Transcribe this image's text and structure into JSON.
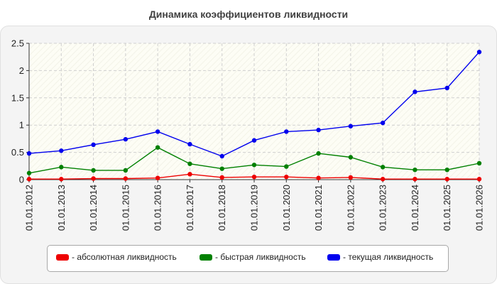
{
  "title": "Динамика коэффициентов ликвидности",
  "chart_data": {
    "type": "line",
    "categories": [
      "01.01.2012",
      "01.01.2013",
      "01.01.2014",
      "01.01.2015",
      "01.01.2016",
      "01.01.2017",
      "01.01.2018",
      "01.01.2019",
      "01.01.2020",
      "01.01.2021",
      "01.01.2022",
      "01.01.2023",
      "01.01.2024",
      "01.01.2025",
      "01.01.2026"
    ],
    "ylim": [
      0,
      2.5
    ],
    "yticks": [
      "0",
      "0.5",
      "1",
      "1.5",
      "2",
      "2.5"
    ],
    "grid": true,
    "legend_position": "bottom",
    "series": [
      {
        "name": "- абсолютная ликвидность",
        "color": "#ee0000",
        "values": [
          0.01,
          0.01,
          0.02,
          0.02,
          0.03,
          0.1,
          0.04,
          0.05,
          0.05,
          0.03,
          0.04,
          0.01,
          0.01,
          0.01,
          0.01
        ]
      },
      {
        "name": "- быстрая ликвидность",
        "color": "#008000",
        "values": [
          0.12,
          0.23,
          0.17,
          0.17,
          0.59,
          0.29,
          0.2,
          0.27,
          0.24,
          0.48,
          0.41,
          0.23,
          0.18,
          0.18,
          0.3
        ]
      },
      {
        "name": "- текущая ликвидность",
        "color": "#0000ee",
        "values": [
          0.48,
          0.53,
          0.64,
          0.74,
          0.88,
          0.65,
          0.43,
          0.72,
          0.88,
          0.91,
          0.98,
          1.04,
          1.61,
          1.68,
          2.34
        ]
      }
    ]
  }
}
